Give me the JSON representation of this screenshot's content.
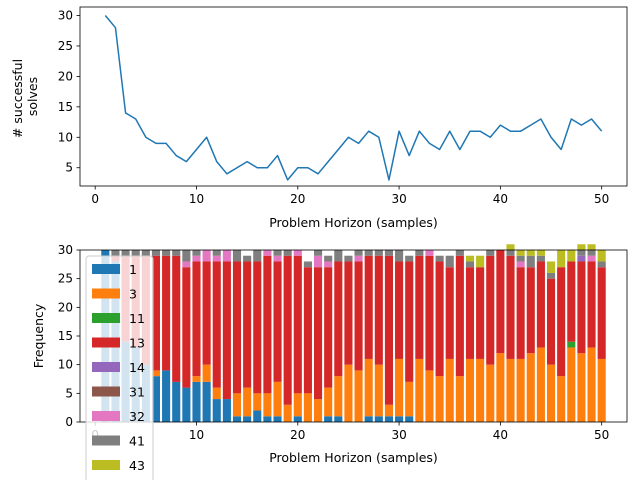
{
  "chart_data": [
    {
      "type": "line",
      "title": "",
      "xlabel": "Problem Horizon (samples)",
      "ylabel_lines": [
        "# successful",
        "solves"
      ],
      "xlim": [
        -1.5,
        52.5
      ],
      "ylim": [
        2.0,
        31.4
      ],
      "xticks": [
        0,
        10,
        20,
        30,
        40,
        50
      ],
      "yticks": [
        5,
        10,
        15,
        20,
        25,
        30
      ],
      "grid": false,
      "color": "#1f77b4",
      "x": [
        1,
        2,
        3,
        4,
        5,
        6,
        7,
        8,
        9,
        10,
        11,
        12,
        13,
        14,
        15,
        16,
        17,
        18,
        19,
        20,
        21,
        22,
        23,
        24,
        25,
        26,
        27,
        28,
        29,
        30,
        31,
        32,
        33,
        34,
        35,
        36,
        37,
        38,
        39,
        40,
        41,
        42,
        43,
        44,
        45,
        46,
        47,
        48,
        49,
        50
      ],
      "values": [
        30,
        28,
        14,
        13,
        10,
        9,
        9,
        7,
        6,
        8,
        10,
        6,
        4,
        5,
        6,
        5,
        5,
        7,
        3,
        5,
        5,
        4,
        6,
        8,
        10,
        9,
        11,
        10,
        3,
        11,
        7,
        11,
        9,
        8,
        11,
        8,
        11,
        11,
        10,
        12,
        11,
        11,
        12,
        13,
        10,
        8,
        13,
        12,
        13,
        11
      ]
    },
    {
      "type": "bar",
      "stacked": true,
      "title": "",
      "xlabel": "Problem Horizon (samples)",
      "ylabel": "Frequency",
      "xlim": [
        -1.5,
        52.5
      ],
      "ylim": [
        0,
        30
      ],
      "xticks": [
        0,
        10,
        20,
        30,
        40,
        50
      ],
      "yticks": [
        0,
        5,
        10,
        15,
        20,
        25,
        30
      ],
      "grid": false,
      "legend_position": "upper-left",
      "x": [
        1,
        2,
        3,
        4,
        5,
        6,
        7,
        8,
        9,
        10,
        11,
        12,
        13,
        14,
        15,
        16,
        17,
        18,
        19,
        20,
        21,
        22,
        23,
        24,
        25,
        26,
        27,
        28,
        29,
        30,
        31,
        32,
        33,
        34,
        35,
        36,
        37,
        38,
        39,
        40,
        41,
        42,
        43,
        44,
        45,
        46,
        47,
        48,
        49,
        50
      ],
      "series": [
        {
          "name": "1",
          "color": "#1f77b4",
          "values": [
            30,
            28,
            14,
            13,
            10,
            8,
            9,
            7,
            6,
            7,
            7,
            4,
            4,
            1,
            1,
            2,
            1,
            1,
            0,
            1,
            0,
            0,
            1,
            1,
            0,
            0,
            1,
            1,
            1,
            1,
            1,
            0,
            0,
            0,
            0,
            0,
            0,
            0,
            0,
            0,
            0,
            0,
            0,
            0,
            0,
            0,
            0,
            0,
            0,
            0
          ]
        },
        {
          "name": "3",
          "color": "#ff7f0e",
          "values": [
            0,
            0,
            0,
            0,
            0,
            1,
            0,
            0,
            0,
            1,
            3,
            2,
            0,
            4,
            5,
            3,
            4,
            6,
            3,
            4,
            5,
            4,
            5,
            7,
            10,
            9,
            10,
            9,
            2,
            10,
            6,
            11,
            9,
            8,
            11,
            8,
            11,
            11,
            10,
            12,
            11,
            11,
            12,
            13,
            10,
            8,
            13,
            12,
            13,
            11
          ]
        },
        {
          "name": "11",
          "color": "#2ca02c",
          "values": [
            0,
            0,
            0,
            0,
            0,
            0,
            0,
            0,
            0,
            0,
            0,
            0,
            0,
            0,
            0,
            0,
            0,
            0,
            0,
            0,
            0,
            0,
            0,
            0,
            0,
            0,
            0,
            0,
            0,
            0,
            0,
            0,
            0,
            0,
            0,
            0,
            0,
            0,
            0,
            0,
            0,
            0,
            0,
            0,
            0,
            0,
            1,
            0,
            0,
            0
          ]
        },
        {
          "name": "13",
          "color": "#d62728",
          "values": [
            0,
            1,
            15,
            16,
            19,
            20,
            20,
            22,
            21,
            20,
            18,
            22,
            24,
            23,
            22,
            23,
            24,
            21,
            26,
            24,
            22,
            23,
            21,
            20,
            18,
            19,
            18,
            19,
            26,
            17,
            21,
            18,
            20,
            20,
            16,
            21,
            16,
            16,
            19,
            18,
            18,
            16,
            15,
            15,
            15,
            19,
            14,
            16,
            15,
            16
          ]
        },
        {
          "name": "14",
          "color": "#9467bd",
          "values": [
            0,
            0,
            0,
            0,
            0,
            0,
            0,
            0,
            0,
            0,
            0,
            0,
            0,
            0,
            0,
            0,
            0,
            0,
            0,
            0,
            0,
            0,
            0,
            0,
            0,
            0,
            0,
            0,
            0,
            0,
            0,
            0,
            0,
            0,
            0,
            0,
            0,
            0,
            0,
            0,
            0,
            0,
            0,
            0,
            0,
            0,
            0,
            1,
            0,
            0
          ]
        },
        {
          "name": "31",
          "color": "#8c564b",
          "values": [
            0,
            0,
            0,
            0,
            0,
            0,
            0,
            0,
            0,
            0,
            0,
            0,
            0,
            0,
            0,
            0,
            0,
            0,
            0,
            0,
            0,
            0,
            0,
            0,
            0,
            0,
            0,
            0,
            0,
            0,
            0,
            0,
            0,
            0,
            0,
            0,
            0,
            0,
            0,
            0,
            0,
            0,
            0,
            0,
            0,
            0,
            0,
            0,
            0,
            0
          ]
        },
        {
          "name": "32",
          "color": "#e377c2",
          "values": [
            0,
            0,
            0,
            0,
            0,
            0,
            0,
            0,
            1,
            1,
            2,
            1,
            2,
            0,
            0,
            0,
            1,
            1,
            0,
            1,
            0,
            2,
            1,
            0,
            0,
            1,
            0,
            0,
            0,
            0,
            0,
            0,
            1,
            0,
            0,
            0,
            0,
            0,
            0,
            0,
            0,
            1,
            0,
            0,
            0,
            0,
            0,
            0,
            1,
            0
          ]
        },
        {
          "name": "41",
          "color": "#7f7f7f",
          "values": [
            0,
            1,
            1,
            1,
            1,
            1,
            1,
            1,
            2,
            1,
            0,
            1,
            0,
            2,
            1,
            2,
            0,
            1,
            1,
            0,
            1,
            1,
            1,
            2,
            1,
            1,
            1,
            1,
            1,
            2,
            1,
            1,
            0,
            1,
            2,
            1,
            1,
            0,
            1,
            0,
            1,
            1,
            2,
            1,
            1,
            0,
            0,
            1,
            1,
            1
          ]
        },
        {
          "name": "43",
          "color": "#bcbd22",
          "values": [
            0,
            0,
            0,
            0,
            0,
            0,
            0,
            0,
            0,
            0,
            0,
            0,
            0,
            0,
            0,
            0,
            0,
            0,
            0,
            0,
            0,
            0,
            0,
            0,
            0,
            0,
            0,
            0,
            0,
            0,
            0,
            0,
            0,
            0,
            0,
            0,
            1,
            2,
            0,
            0,
            1,
            1,
            1,
            1,
            2,
            3,
            2,
            1,
            1,
            2
          ]
        }
      ]
    }
  ]
}
